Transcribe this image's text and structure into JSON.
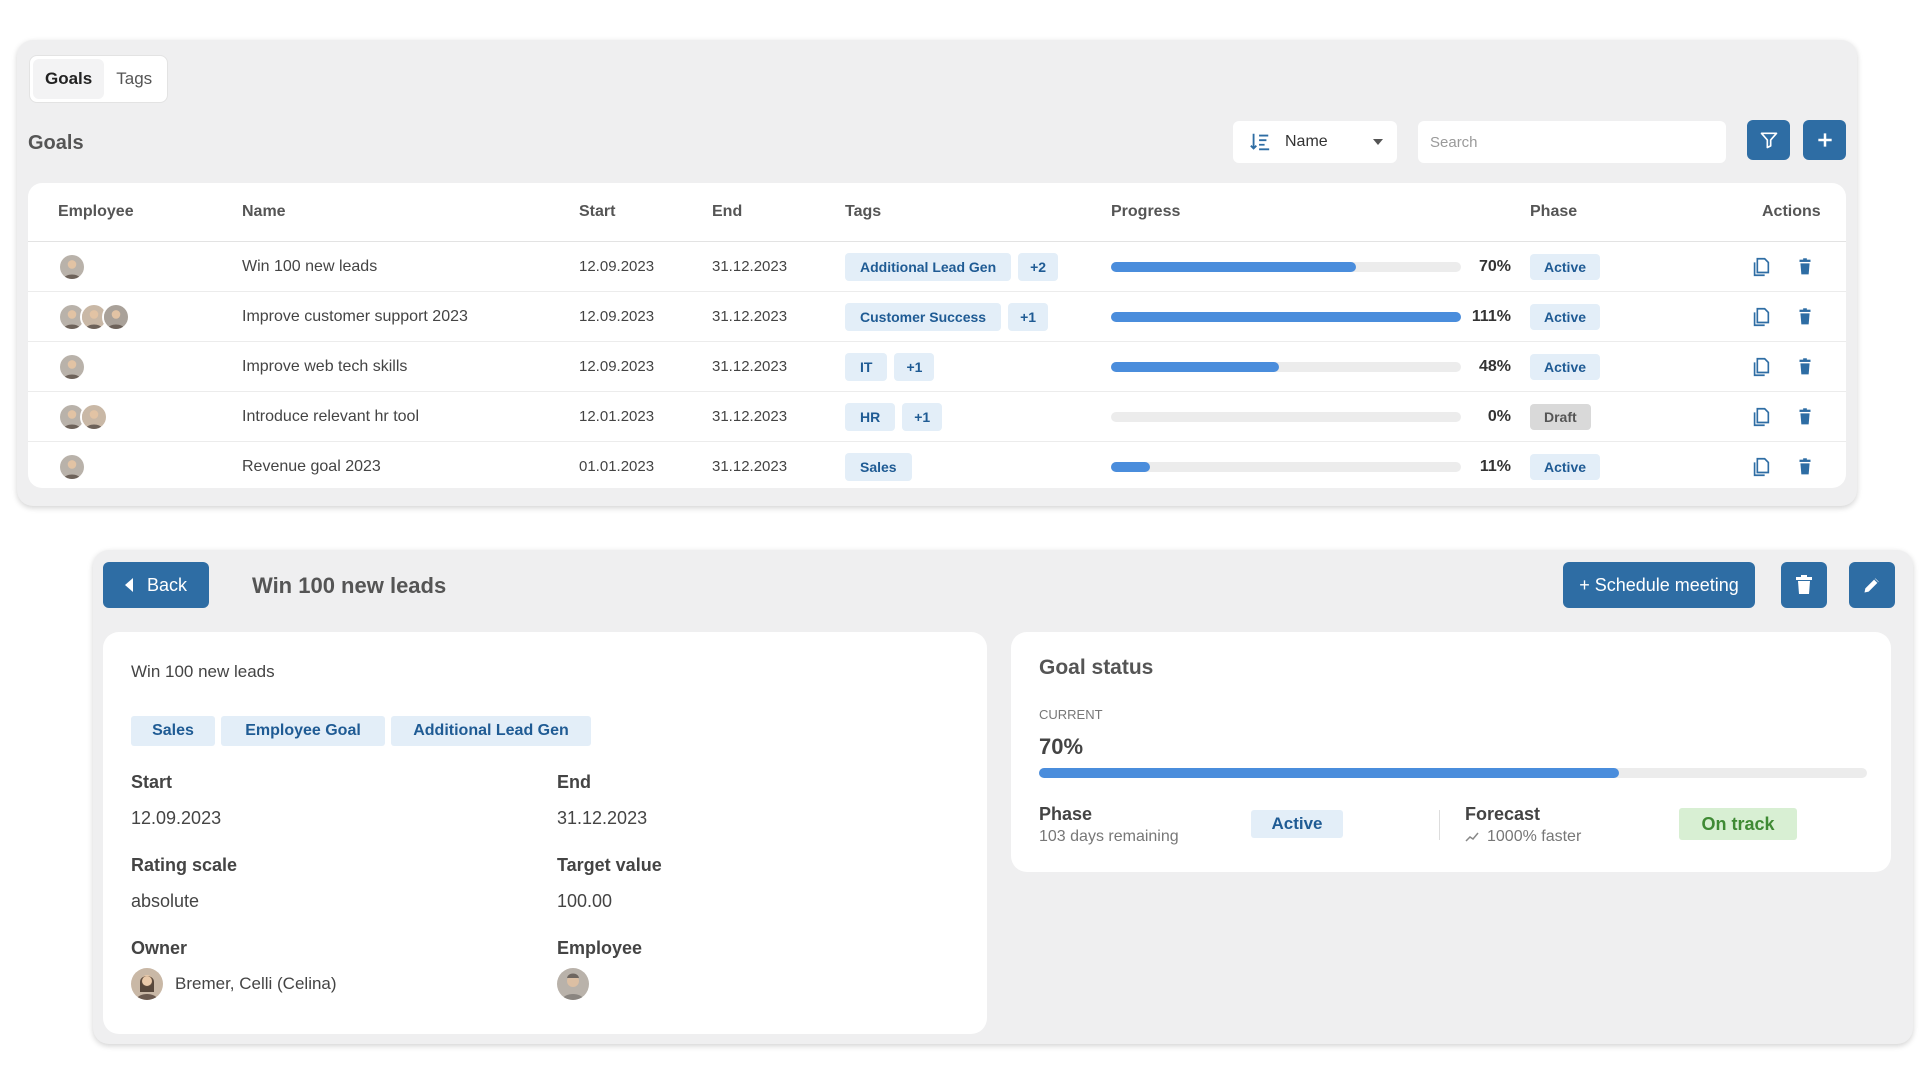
{
  "tabs": [
    "Goals",
    "Tags"
  ],
  "section_title": "Goals",
  "sort": {
    "label": "Name"
  },
  "search": {
    "placeholder": "Search"
  },
  "table": {
    "headers": {
      "employee": "Employee",
      "name": "Name",
      "start": "Start",
      "end": "End",
      "tags": "Tags",
      "progress": "Progress",
      "phase": "Phase",
      "actions": "Actions"
    },
    "rows": [
      {
        "avatars": 1,
        "name": "Win 100 new leads",
        "start": "12.09.2023",
        "end": "31.12.2023",
        "tags": [
          "Additional Lead Gen",
          "+2"
        ],
        "progress": 0.7,
        "progress_label": "70%",
        "phase": "Active"
      },
      {
        "avatars": 3,
        "name": "Improve customer support 2023",
        "start": "12.09.2023",
        "end": "31.12.2023",
        "tags": [
          "Customer Success",
          "+1"
        ],
        "progress": 1.0,
        "progress_label": "111%",
        "phase": "Active"
      },
      {
        "avatars": 1,
        "name": "Improve web tech skills",
        "start": "12.09.2023",
        "end": "31.12.2023",
        "tags": [
          "IT",
          "+1"
        ],
        "progress": 0.48,
        "progress_label": "48%",
        "phase": "Active"
      },
      {
        "avatars": 2,
        "name": "Introduce relevant hr tool",
        "start": "12.01.2023",
        "end": "31.12.2023",
        "tags": [
          "HR",
          "+1"
        ],
        "progress": 0.0,
        "progress_label": "0%",
        "phase": "Draft"
      },
      {
        "avatars": 1,
        "name": "Revenue goal 2023",
        "start": "01.01.2023",
        "end": "31.12.2023",
        "tags": [
          "Sales"
        ],
        "progress": 0.11,
        "progress_label": "11%",
        "phase": "Active"
      }
    ]
  },
  "detail": {
    "back_label": "Back",
    "title": "Win 100 new leads",
    "schedule_label": "+ Schedule meeting",
    "description": "Win 100 new leads",
    "tags": [
      "Sales",
      "Employee Goal",
      "Additional Lead Gen"
    ],
    "start_label": "Start",
    "start_value": "12.09.2023",
    "end_label": "End",
    "end_value": "31.12.2023",
    "rating_label": "Rating scale",
    "rating_value": "absolute",
    "target_label": "Target value",
    "target_value": "100.00",
    "owner_label": "Owner",
    "owner_name": "Bremer, Celli (Celina)",
    "employee_label": "Employee"
  },
  "status": {
    "title": "Goal status",
    "current_label": "CURRENT",
    "current_value": "70%",
    "progress": 0.7,
    "phase_label": "Phase",
    "days_remaining": "103 days remaining",
    "phase_badge": "Active",
    "forecast_label": "Forecast",
    "forecast_text": "1000% faster",
    "forecast_badge": "On track"
  },
  "colors": {
    "primary": "#2e6da4",
    "progress": "#4a8ddc",
    "tag_bg": "#e3eef8",
    "tag_text": "#1f5b94",
    "on_track_bg": "#d8efd3",
    "on_track_text": "#3f8a34"
  },
  "icons": [
    "sort-icon",
    "chevron-down-icon",
    "filter-icon",
    "plus-icon",
    "copy-icon",
    "trash-icon",
    "back-arrow-icon",
    "edit-icon",
    "trend-icon"
  ]
}
